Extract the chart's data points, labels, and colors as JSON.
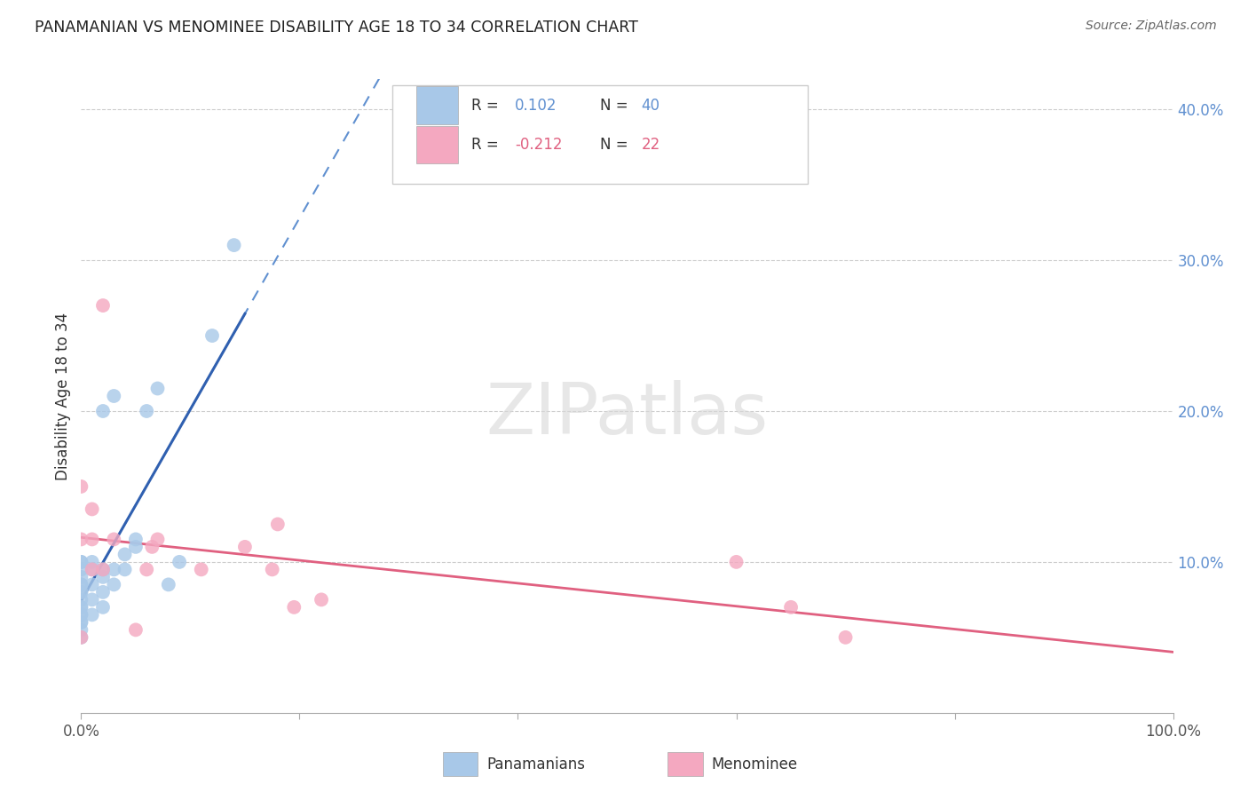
{
  "title": "PANAMANIAN VS MENOMINEE DISABILITY AGE 18 TO 34 CORRELATION CHART",
  "source": "Source: ZipAtlas.com",
  "ylabel": "Disability Age 18 to 34",
  "xlim": [
    0.0,
    1.0
  ],
  "ylim": [
    0.0,
    0.42
  ],
  "ytick_positions": [
    0.1,
    0.2,
    0.3,
    0.4
  ],
  "yticklabels": [
    "10.0%",
    "20.0%",
    "30.0%",
    "40.0%"
  ],
  "blue_color": "#a8c8e8",
  "pink_color": "#f4a8c0",
  "trendline_blue_solid": "#3060b0",
  "trendline_blue_dash": "#6090d0",
  "trendline_pink": "#e06080",
  "grid_color": "#cccccc",
  "panamanian_x": [
    0.0,
    0.0,
    0.0,
    0.0,
    0.0,
    0.0,
    0.0,
    0.0,
    0.0,
    0.0,
    0.0,
    0.0,
    0.0,
    0.0,
    0.0,
    0.0,
    0.0,
    0.01,
    0.01,
    0.01,
    0.01,
    0.01,
    0.02,
    0.02,
    0.02,
    0.02,
    0.02,
    0.03,
    0.03,
    0.03,
    0.04,
    0.04,
    0.05,
    0.05,
    0.06,
    0.07,
    0.08,
    0.09,
    0.12,
    0.14
  ],
  "panamanian_y": [
    0.05,
    0.055,
    0.06,
    0.065,
    0.07,
    0.07,
    0.075,
    0.08,
    0.08,
    0.085,
    0.085,
    0.09,
    0.095,
    0.1,
    0.1,
    0.06,
    0.065,
    0.065,
    0.075,
    0.085,
    0.095,
    0.1,
    0.07,
    0.08,
    0.09,
    0.095,
    0.2,
    0.085,
    0.095,
    0.21,
    0.095,
    0.105,
    0.11,
    0.115,
    0.2,
    0.215,
    0.085,
    0.1,
    0.25,
    0.31
  ],
  "menominee_x": [
    0.0,
    0.0,
    0.0,
    0.01,
    0.01,
    0.01,
    0.02,
    0.02,
    0.03,
    0.05,
    0.06,
    0.065,
    0.07,
    0.11,
    0.15,
    0.175,
    0.18,
    0.195,
    0.22,
    0.6,
    0.65,
    0.7
  ],
  "menominee_y": [
    0.05,
    0.115,
    0.15,
    0.095,
    0.115,
    0.135,
    0.095,
    0.27,
    0.115,
    0.055,
    0.095,
    0.11,
    0.115,
    0.095,
    0.11,
    0.095,
    0.125,
    0.07,
    0.075,
    0.1,
    0.07,
    0.05
  ]
}
